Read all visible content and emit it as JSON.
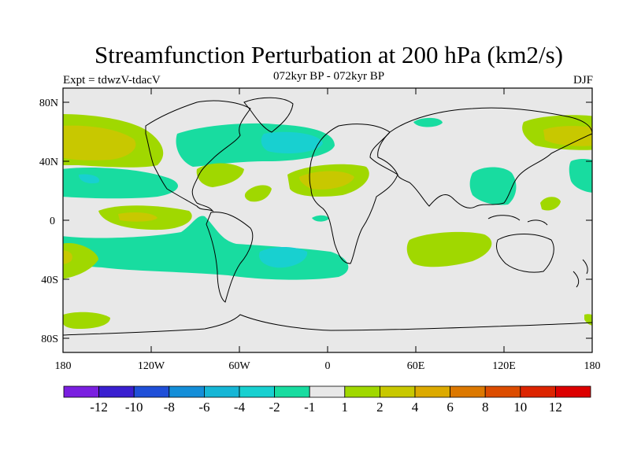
{
  "title": "Streamfunction Perturbation at 200 hPa (km2/s)",
  "subtitle": "072kyr BP - 072kyr BP",
  "left_label": "Expt = tdwzV-tdacV",
  "right_label": "DJF",
  "map": {
    "lat_ticks": [
      "80N",
      "40N",
      "0",
      "40S",
      "80S"
    ],
    "lon_ticks": [
      "180",
      "120W",
      "60W",
      "0",
      "60E",
      "120E",
      "180"
    ],
    "colors": {
      "ocean_bg": "#e8e8e8",
      "coast": "#000000"
    }
  },
  "colorbar": {
    "labels": [
      "-12",
      "-10",
      "-8",
      "-6",
      "-4",
      "-2",
      "-1",
      "1",
      "2",
      "4",
      "6",
      "8",
      "10",
      "12"
    ],
    "colors": [
      "#7a1fe0",
      "#3a1fd0",
      "#1f4fd8",
      "#148ed8",
      "#16b6d6",
      "#18d0d0",
      "#18dca0",
      "#e8e8e8",
      "#a0d800",
      "#c8c800",
      "#dcaa00",
      "#dc7800",
      "#dc4c00",
      "#dc2400",
      "#dc0000"
    ]
  }
}
